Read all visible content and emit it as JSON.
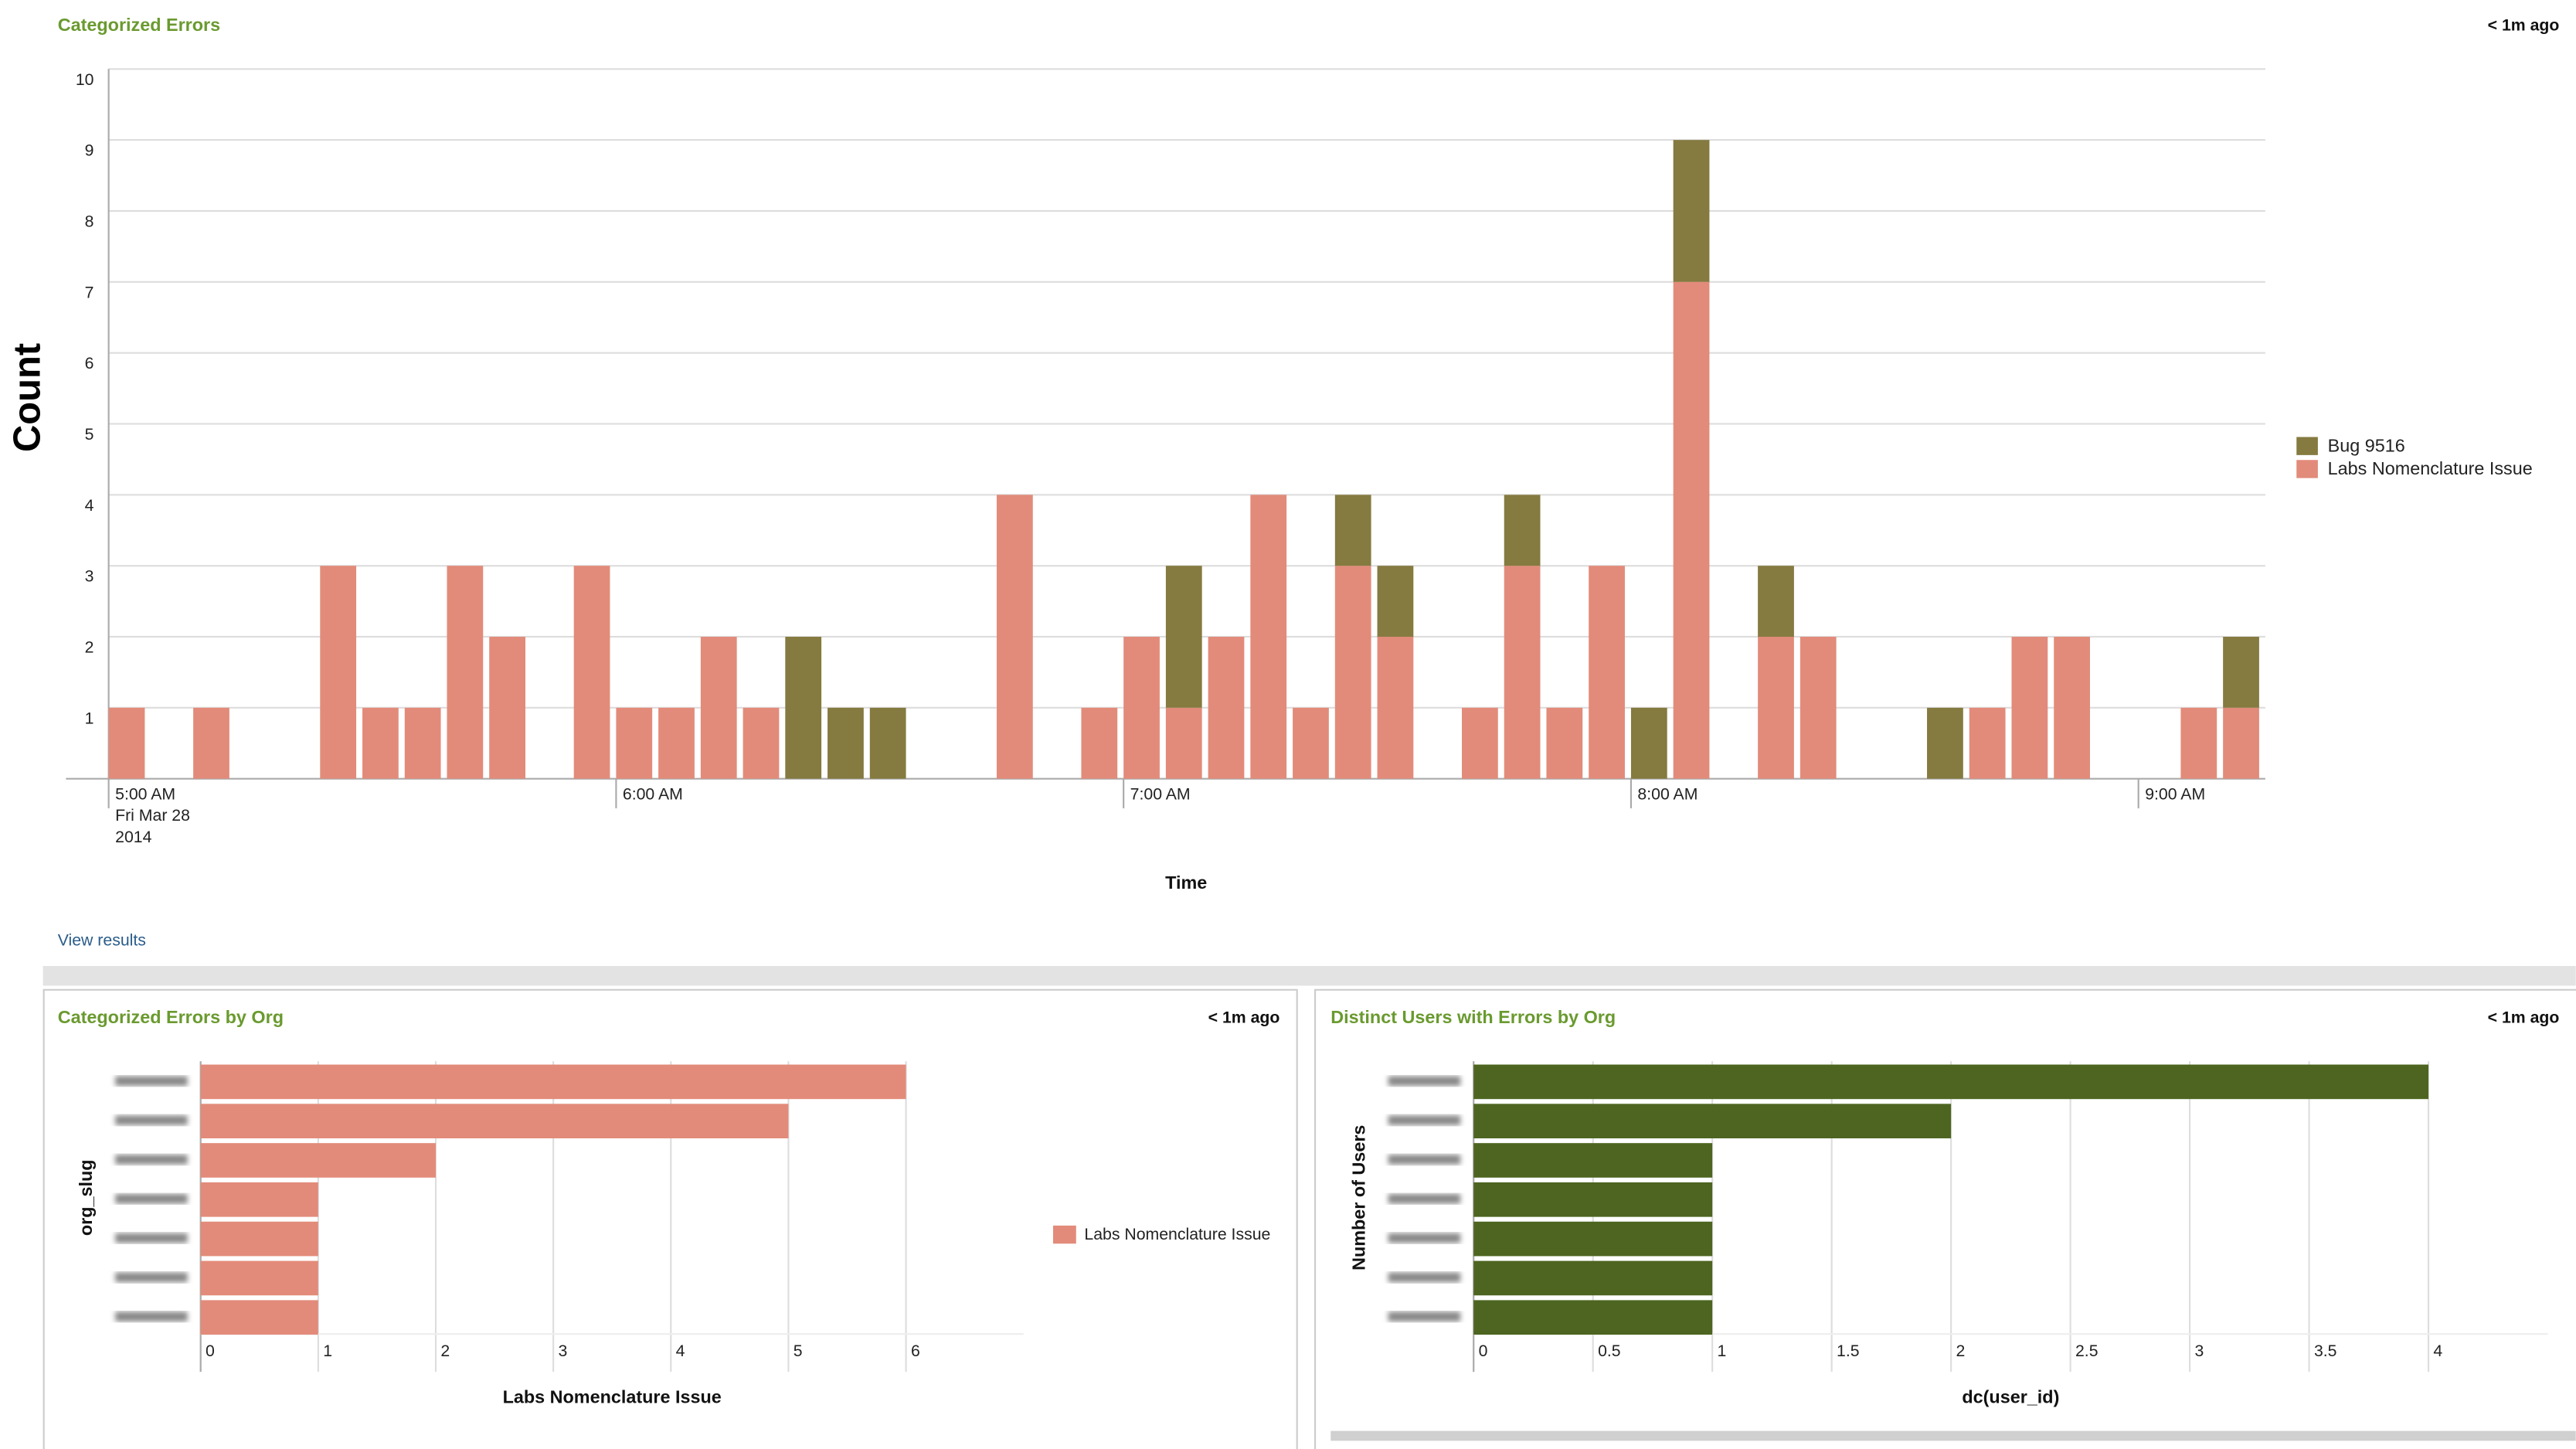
{
  "view_results": "View results",
  "chart_data": [
    {
      "type": "stacked_bar",
      "title": "Categorized Errors",
      "updated": "< 1m ago",
      "xlabel": "Time",
      "ylabel": "Count",
      "x": [
        "2014-03-28 05:00",
        "2014-03-28 05:10",
        "2014-03-28 05:25",
        "2014-03-28 05:30",
        "2014-03-28 05:35",
        "2014-03-28 05:40",
        "2014-03-28 05:45",
        "2014-03-28 05:55",
        "2014-03-28 06:00",
        "2014-03-28 06:05",
        "2014-03-28 06:10",
        "2014-03-28 06:15",
        "2014-03-28 06:20",
        "2014-03-28 06:25",
        "2014-03-28 06:30",
        "2014-03-28 06:45",
        "2014-03-28 06:55",
        "2014-03-28 07:00",
        "2014-03-28 07:05",
        "2014-03-28 07:10",
        "2014-03-28 07:15",
        "2014-03-28 07:20",
        "2014-03-28 07:25",
        "2014-03-28 07:30",
        "2014-03-28 07:40",
        "2014-03-28 07:45",
        "2014-03-28 07:50",
        "2014-03-28 07:55",
        "2014-03-28 08:00",
        "2014-03-28 08:05",
        "2014-03-28 08:15",
        "2014-03-28 08:20",
        "2014-03-28 08:35",
        "2014-03-28 08:40",
        "2014-03-28 08:45",
        "2014-03-28 08:50",
        "2014-03-28 09:05",
        "2014-03-28 09:10"
      ],
      "series": [
        {
          "name": "Labs Nomenclature Issue",
          "color": "#e28b7a",
          "values": [
            1,
            1,
            3,
            1,
            1,
            3,
            2,
            3,
            1,
            1,
            2,
            1,
            0,
            0,
            0,
            4,
            1,
            2,
            1,
            2,
            4,
            1,
            3,
            2,
            1,
            3,
            1,
            3,
            0,
            7,
            2,
            2,
            0,
            1,
            2,
            2,
            1,
            1
          ]
        },
        {
          "name": "Bug 9516",
          "color": "#857a3f",
          "values": [
            0,
            0,
            0,
            0,
            0,
            0,
            0,
            0,
            0,
            0,
            0,
            0,
            2,
            1,
            1,
            0,
            0,
            0,
            2,
            0,
            0,
            0,
            1,
            1,
            0,
            1,
            0,
            0,
            1,
            2,
            1,
            0,
            1,
            0,
            0,
            0,
            0,
            1
          ]
        }
      ],
      "legend_order": [
        "Bug 9516",
        "Labs Nomenclature Issue"
      ],
      "xlim": [
        "2014-03-28 05:00",
        "2014-03-28 09:15"
      ],
      "xticks": [
        {
          "value": "2014-03-28 05:00",
          "label": "5:00 AM",
          "sublabel": [
            "Fri Mar 28",
            "2014"
          ]
        },
        {
          "value": "2014-03-28 06:00",
          "label": "6:00 AM"
        },
        {
          "value": "2014-03-28 07:00",
          "label": "7:00 AM"
        },
        {
          "value": "2014-03-28 08:00",
          "label": "8:00 AM"
        },
        {
          "value": "2014-03-28 09:00",
          "label": "9:00 AM"
        }
      ],
      "ylim": [
        0,
        10
      ],
      "yticks": [
        1,
        2,
        3,
        4,
        5,
        6,
        7,
        8,
        9,
        10
      ],
      "grid": true,
      "legend": "right"
    },
    {
      "type": "hbar",
      "title": "Categorized Errors by Org",
      "updated": "< 1m ago",
      "xlabel": "Labs Nomenclature Issue",
      "ylabel": "org_slug",
      "categories": [
        null,
        null,
        null,
        null,
        null,
        null,
        null
      ],
      "values": [
        6,
        5,
        2,
        1,
        1,
        1,
        1
      ],
      "color": "#e28b7a",
      "legend_name": "Labs Nomenclature Issue",
      "xlim": [
        0,
        7
      ],
      "xticks": [
        0,
        1,
        2,
        3,
        4,
        5,
        6
      ],
      "grid": true
    },
    {
      "type": "hbar",
      "title": "Distinct Users with Errors by Org",
      "updated": "< 1m ago",
      "xlabel": "dc(user_id)",
      "ylabel": "Number of Users",
      "categories": [
        null,
        null,
        null,
        null,
        null,
        null,
        null
      ],
      "values": [
        4,
        2,
        1,
        1,
        1,
        1,
        1
      ],
      "color": "#4d6520",
      "xlim": [
        0,
        4.5
      ],
      "xticks": [
        0,
        0.5,
        1,
        1.5,
        2,
        2.5,
        3,
        3.5,
        4
      ],
      "grid": true
    }
  ]
}
